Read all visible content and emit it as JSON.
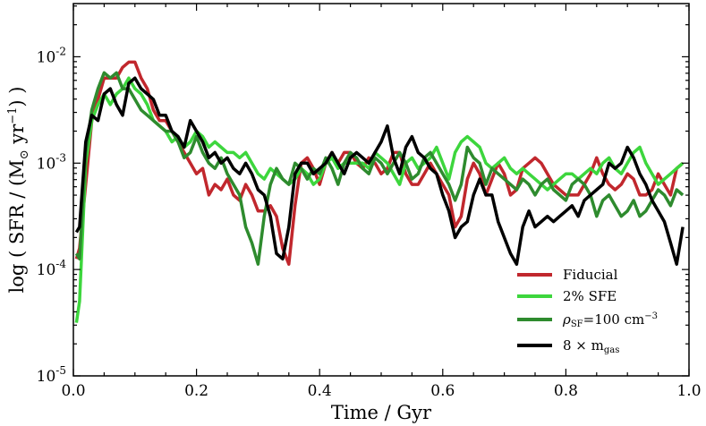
{
  "chart_data": {
    "type": "line",
    "xlabel": "Time / Gyr",
    "ylabel_parts": {
      "prefix": "log ( SFR / (M",
      "sun": "⊙",
      "mid": " yr",
      "exp": "−1",
      "suffix": ") )"
    },
    "xlim": [
      0.0,
      1.0
    ],
    "ylim": [
      -5,
      -1.5
    ],
    "yscale": "log",
    "x_ticks": [
      0.0,
      0.2,
      0.4,
      0.6,
      0.8,
      1.0
    ],
    "x_tick_labels": [
      "0.0",
      "0.2",
      "0.4",
      "0.6",
      "0.8",
      "1.0"
    ],
    "y_ticks": [
      -2,
      -3,
      -4,
      -5
    ],
    "y_tick_labels": [
      {
        "base": "10",
        "exp": "-2"
      },
      {
        "base": "10",
        "exp": "-3"
      },
      {
        "base": "10",
        "exp": "-4"
      },
      {
        "base": "10",
        "exp": "-5"
      }
    ],
    "grid": false,
    "legend_position": "lower-right",
    "legend": [
      {
        "text": "Fiducial"
      },
      {
        "text": "2% SFE"
      },
      {
        "text": "=100 cm",
        "pre": "ρ",
        "pre_sub": "SF",
        "post_sup": "−3"
      },
      {
        "text": "8 × m",
        "post_sub": "gas"
      }
    ],
    "series": [
      {
        "color": "#c1272d",
        "x": [
          0.005,
          0.01,
          0.02,
          0.03,
          0.04,
          0.05,
          0.06,
          0.07,
          0.08,
          0.09,
          0.1,
          0.11,
          0.12,
          0.13,
          0.14,
          0.15,
          0.16,
          0.17,
          0.18,
          0.19,
          0.2,
          0.21,
          0.22,
          0.23,
          0.24,
          0.25,
          0.26,
          0.27,
          0.28,
          0.29,
          0.3,
          0.31,
          0.32,
          0.33,
          0.34,
          0.35,
          0.36,
          0.37,
          0.38,
          0.39,
          0.4,
          0.41,
          0.42,
          0.43,
          0.44,
          0.45,
          0.46,
          0.47,
          0.48,
          0.49,
          0.5,
          0.51,
          0.52,
          0.53,
          0.54,
          0.55,
          0.56,
          0.57,
          0.58,
          0.59,
          0.6,
          0.61,
          0.62,
          0.63,
          0.64,
          0.65,
          0.66,
          0.67,
          0.68,
          0.69,
          0.7,
          0.71,
          0.72,
          0.73,
          0.74,
          0.75,
          0.76,
          0.77,
          0.78,
          0.79,
          0.8,
          0.81,
          0.82,
          0.83,
          0.84,
          0.85,
          0.86,
          0.87,
          0.88,
          0.89,
          0.9,
          0.91,
          0.92,
          0.93,
          0.94,
          0.95,
          0.96,
          0.97,
          0.98,
          0.99
        ],
        "y": [
          -3.9,
          -3.8,
          -3.2,
          -2.6,
          -2.4,
          -2.2,
          -2.2,
          -2.2,
          -2.1,
          -2.05,
          -2.05,
          -2.2,
          -2.3,
          -2.5,
          -2.6,
          -2.6,
          -2.7,
          -2.8,
          -2.9,
          -3.0,
          -3.1,
          -3.05,
          -3.3,
          -3.2,
          -3.25,
          -3.15,
          -3.3,
          -3.35,
          -3.2,
          -3.3,
          -3.45,
          -3.45,
          -3.4,
          -3.5,
          -3.8,
          -3.95,
          -3.4,
          -3.0,
          -2.95,
          -3.05,
          -3.2,
          -3.0,
          -2.9,
          -3.0,
          -2.9,
          -2.9,
          -3.0,
          -3.05,
          -2.95,
          -3.0,
          -3.1,
          -3.05,
          -2.9,
          -2.9,
          -3.1,
          -3.2,
          -3.2,
          -3.1,
          -3.0,
          -3.1,
          -3.2,
          -3.3,
          -3.6,
          -3.5,
          -3.15,
          -3.0,
          -3.1,
          -3.3,
          -3.15,
          -3.0,
          -3.1,
          -3.3,
          -3.25,
          -3.05,
          -3.0,
          -2.95,
          -3.0,
          -3.1,
          -3.2,
          -3.25,
          -3.3,
          -3.3,
          -3.3,
          -3.2,
          -3.1,
          -2.95,
          -3.1,
          -3.2,
          -3.25,
          -3.2,
          -3.1,
          -3.15,
          -3.3,
          -3.3,
          -3.25,
          -3.1,
          -3.2,
          -3.3,
          -3.05,
          -3.0
        ]
      },
      {
        "color": "#3dd63d",
        "x": [
          0.005,
          0.01,
          0.02,
          0.03,
          0.04,
          0.05,
          0.06,
          0.07,
          0.08,
          0.09,
          0.1,
          0.11,
          0.12,
          0.13,
          0.14,
          0.15,
          0.16,
          0.17,
          0.18,
          0.19,
          0.2,
          0.21,
          0.22,
          0.23,
          0.24,
          0.25,
          0.26,
          0.27,
          0.28,
          0.29,
          0.3,
          0.31,
          0.32,
          0.33,
          0.34,
          0.35,
          0.36,
          0.37,
          0.38,
          0.39,
          0.4,
          0.41,
          0.42,
          0.43,
          0.44,
          0.45,
          0.46,
          0.47,
          0.48,
          0.49,
          0.5,
          0.51,
          0.52,
          0.53,
          0.54,
          0.55,
          0.56,
          0.57,
          0.58,
          0.59,
          0.6,
          0.61,
          0.62,
          0.63,
          0.64,
          0.65,
          0.66,
          0.67,
          0.68,
          0.69,
          0.7,
          0.71,
          0.72,
          0.73,
          0.74,
          0.75,
          0.76,
          0.77,
          0.78,
          0.79,
          0.8,
          0.81,
          0.82,
          0.83,
          0.84,
          0.85,
          0.86,
          0.87,
          0.88,
          0.89,
          0.9,
          0.91,
          0.92,
          0.93,
          0.94,
          0.95,
          0.96,
          0.97,
          0.98,
          0.99
        ],
        "y": [
          -4.5,
          -4.3,
          -3.0,
          -2.6,
          -2.45,
          -2.35,
          -2.45,
          -2.35,
          -2.3,
          -2.2,
          -2.3,
          -2.35,
          -2.45,
          -2.6,
          -2.65,
          -2.7,
          -2.8,
          -2.75,
          -2.85,
          -2.8,
          -2.7,
          -2.75,
          -2.85,
          -2.8,
          -2.85,
          -2.9,
          -2.9,
          -2.95,
          -2.9,
          -3.0,
          -3.1,
          -3.15,
          -3.05,
          -3.1,
          -3.15,
          -3.2,
          -3.15,
          -3.05,
          -3.1,
          -3.2,
          -3.15,
          -3.0,
          -2.95,
          -3.05,
          -3.0,
          -3.0,
          -3.0,
          -3.0,
          -3.05,
          -2.9,
          -2.95,
          -3.0,
          -3.1,
          -3.2,
          -3.0,
          -2.95,
          -3.05,
          -3.0,
          -2.95,
          -2.85,
          -3.0,
          -3.15,
          -2.9,
          -2.8,
          -2.75,
          -2.8,
          -2.85,
          -3.0,
          -3.05,
          -3.0,
          -2.95,
          -3.05,
          -3.1,
          -3.05,
          -3.1,
          -3.15,
          -3.2,
          -3.25,
          -3.2,
          -3.15,
          -3.1,
          -3.1,
          -3.15,
          -3.1,
          -3.05,
          -3.1,
          -3.0,
          -2.95,
          -3.05,
          -3.1,
          -3.0,
          -2.9,
          -2.85,
          -3.0,
          -3.1,
          -3.2,
          -3.15,
          -3.1,
          -3.05,
          -3.0
        ]
      },
      {
        "color": "#2e8b2e",
        "x": [
          0.005,
          0.01,
          0.02,
          0.03,
          0.04,
          0.05,
          0.06,
          0.07,
          0.08,
          0.09,
          0.1,
          0.11,
          0.12,
          0.13,
          0.14,
          0.15,
          0.16,
          0.17,
          0.18,
          0.19,
          0.2,
          0.21,
          0.22,
          0.23,
          0.24,
          0.25,
          0.26,
          0.27,
          0.28,
          0.29,
          0.3,
          0.31,
          0.32,
          0.33,
          0.34,
          0.35,
          0.36,
          0.37,
          0.38,
          0.39,
          0.4,
          0.41,
          0.42,
          0.43,
          0.44,
          0.45,
          0.46,
          0.47,
          0.48,
          0.49,
          0.5,
          0.51,
          0.52,
          0.53,
          0.54,
          0.55,
          0.56,
          0.57,
          0.58,
          0.59,
          0.6,
          0.61,
          0.62,
          0.63,
          0.64,
          0.65,
          0.66,
          0.67,
          0.68,
          0.69,
          0.7,
          0.71,
          0.72,
          0.73,
          0.74,
          0.75,
          0.76,
          0.77,
          0.78,
          0.79,
          0.8,
          0.81,
          0.82,
          0.83,
          0.84,
          0.85,
          0.86,
          0.87,
          0.88,
          0.89,
          0.9,
          0.91,
          0.92,
          0.93,
          0.94,
          0.95,
          0.96,
          0.97,
          0.98,
          0.99
        ],
        "y": [
          -3.85,
          -3.9,
          -2.9,
          -2.5,
          -2.3,
          -2.15,
          -2.2,
          -2.15,
          -2.3,
          -2.3,
          -2.4,
          -2.5,
          -2.55,
          -2.6,
          -2.65,
          -2.7,
          -2.7,
          -2.8,
          -2.95,
          -2.9,
          -2.75,
          -2.9,
          -3.0,
          -3.05,
          -2.95,
          -3.1,
          -3.2,
          -3.3,
          -3.6,
          -3.75,
          -3.95,
          -3.5,
          -3.2,
          -3.05,
          -3.15,
          -3.2,
          -3.0,
          -3.05,
          -3.15,
          -3.05,
          -3.1,
          -2.95,
          -3.05,
          -3.2,
          -3.0,
          -2.9,
          -2.95,
          -3.05,
          -3.1,
          -2.95,
          -3.0,
          -3.1,
          -3.0,
          -2.9,
          -3.0,
          -3.15,
          -3.1,
          -2.95,
          -2.9,
          -3.0,
          -3.1,
          -3.2,
          -3.35,
          -3.2,
          -2.85,
          -2.95,
          -3.0,
          -3.2,
          -3.05,
          -3.1,
          -3.15,
          -3.2,
          -3.25,
          -3.15,
          -3.2,
          -3.3,
          -3.2,
          -3.15,
          -3.25,
          -3.3,
          -3.35,
          -3.2,
          -3.15,
          -3.2,
          -3.3,
          -3.5,
          -3.35,
          -3.3,
          -3.4,
          -3.5,
          -3.45,
          -3.35,
          -3.5,
          -3.45,
          -3.35,
          -3.25,
          -3.3,
          -3.4,
          -3.25,
          -3.3
        ]
      },
      {
        "color": "#000000",
        "x": [
          0.005,
          0.01,
          0.02,
          0.03,
          0.04,
          0.05,
          0.06,
          0.07,
          0.08,
          0.09,
          0.1,
          0.11,
          0.12,
          0.13,
          0.14,
          0.15,
          0.16,
          0.17,
          0.18,
          0.19,
          0.2,
          0.21,
          0.22,
          0.23,
          0.24,
          0.25,
          0.26,
          0.27,
          0.28,
          0.29,
          0.3,
          0.31,
          0.32,
          0.33,
          0.34,
          0.35,
          0.36,
          0.37,
          0.38,
          0.39,
          0.4,
          0.41,
          0.42,
          0.43,
          0.44,
          0.45,
          0.46,
          0.47,
          0.48,
          0.49,
          0.5,
          0.51,
          0.52,
          0.53,
          0.54,
          0.55,
          0.56,
          0.57,
          0.58,
          0.59,
          0.6,
          0.61,
          0.62,
          0.63,
          0.64,
          0.65,
          0.66,
          0.67,
          0.68,
          0.69,
          0.7,
          0.71,
          0.72,
          0.73,
          0.74,
          0.75,
          0.76,
          0.77,
          0.78,
          0.79,
          0.8,
          0.81,
          0.82,
          0.83,
          0.84,
          0.85,
          0.86,
          0.87,
          0.88,
          0.89,
          0.9,
          0.91,
          0.92,
          0.93,
          0.94,
          0.95,
          0.96,
          0.97,
          0.98,
          0.99
        ],
        "y": [
          -3.65,
          -3.6,
          -2.8,
          -2.55,
          -2.6,
          -2.35,
          -2.3,
          -2.45,
          -2.55,
          -2.25,
          -2.2,
          -2.3,
          -2.35,
          -2.4,
          -2.55,
          -2.55,
          -2.7,
          -2.75,
          -2.85,
          -2.6,
          -2.7,
          -2.8,
          -2.95,
          -2.9,
          -3.0,
          -2.95,
          -3.05,
          -3.1,
          -3.0,
          -3.1,
          -3.25,
          -3.3,
          -3.5,
          -3.85,
          -3.9,
          -3.6,
          -3.1,
          -3.0,
          -3.0,
          -3.1,
          -3.05,
          -3.0,
          -2.9,
          -3.0,
          -3.1,
          -2.95,
          -2.9,
          -2.95,
          -3.0,
          -2.9,
          -2.8,
          -2.65,
          -2.95,
          -3.1,
          -2.85,
          -2.75,
          -2.9,
          -2.95,
          -3.05,
          -3.1,
          -3.3,
          -3.45,
          -3.7,
          -3.6,
          -3.55,
          -3.3,
          -3.15,
          -3.3,
          -3.3,
          -3.55,
          -3.7,
          -3.85,
          -3.95,
          -3.6,
          -3.45,
          -3.6,
          -3.55,
          -3.5,
          -3.55,
          -3.5,
          -3.45,
          -3.4,
          -3.5,
          -3.35,
          -3.3,
          -3.25,
          -3.2,
          -3.0,
          -3.05,
          -3.0,
          -2.85,
          -2.95,
          -3.1,
          -3.2,
          -3.35,
          -3.45,
          -3.55,
          -3.75,
          -3.95,
          -3.6
        ]
      }
    ]
  }
}
